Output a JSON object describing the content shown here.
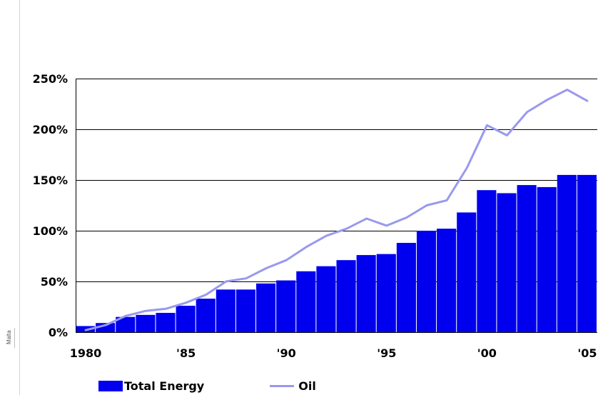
{
  "side_label": "Malta",
  "chart_data": {
    "type": "bar",
    "title": "",
    "xlabel": "",
    "ylabel": "",
    "ylim": [
      0,
      250
    ],
    "yticks": [
      0,
      50,
      100,
      150,
      200,
      250
    ],
    "ytick_labels": [
      "0%",
      "50%",
      "100%",
      "150%",
      "200%",
      "250%"
    ],
    "xtick_labels": [
      {
        "year": 1980,
        "label": "1980"
      },
      {
        "year": 1985,
        "label": "'85"
      },
      {
        "year": 1990,
        "label": "'90"
      },
      {
        "year": 1995,
        "label": "'95"
      },
      {
        "year": 2000,
        "label": "'00"
      },
      {
        "year": 2005,
        "label": "'05"
      }
    ],
    "grid": true,
    "legend_position": "bottom",
    "x": [
      1980,
      1981,
      1982,
      1983,
      1984,
      1985,
      1986,
      1987,
      1988,
      1989,
      1990,
      1991,
      1992,
      1993,
      1994,
      1995,
      1996,
      1997,
      1998,
      1999,
      2000,
      2001,
      2002,
      2003,
      2004,
      2005
    ],
    "series": [
      {
        "name": "Total Energy",
        "type": "bar",
        "color": "#0000ee",
        "values": [
          6,
          9,
          15,
          17,
          19,
          26,
          33,
          42,
          42,
          48,
          51,
          60,
          65,
          71,
          76,
          77,
          88,
          100,
          102,
          118,
          140,
          137,
          145,
          143,
          155,
          155
        ]
      },
      {
        "name": "Oil",
        "type": "line",
        "color": "#9999ee",
        "values": [
          2,
          7,
          16,
          21,
          23,
          29,
          37,
          50,
          53,
          63,
          71,
          84,
          95,
          102,
          112,
          105,
          113,
          125,
          130,
          162,
          204,
          194,
          217,
          229,
          239,
          228
        ]
      }
    ]
  }
}
